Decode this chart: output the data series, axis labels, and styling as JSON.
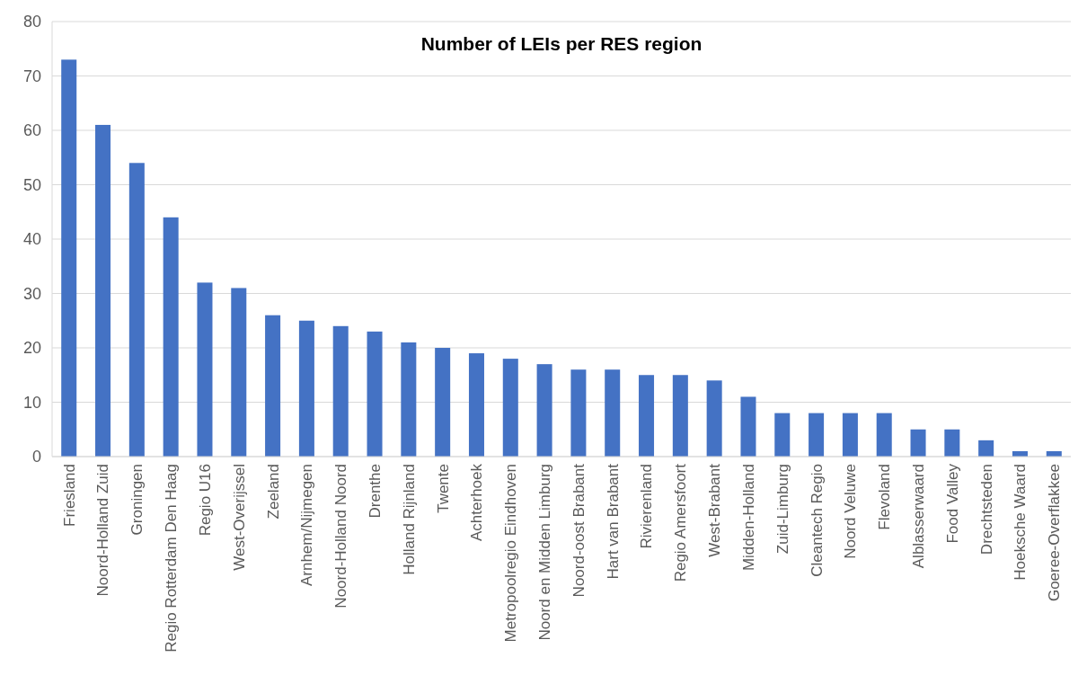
{
  "chart_data": {
    "type": "bar",
    "title": "Number of LEIs per RES region",
    "categories": [
      "Friesland",
      "Noord-Holland Zuid",
      "Groningen",
      "Regio Rotterdam Den Haag",
      "Regio U16",
      "West-Overijssel",
      "Zeeland",
      "Arnhem/Nijmegen",
      "Noord-Holland Noord",
      "Drenthe",
      "Holland Rijnland",
      "Twente",
      "Achterhoek",
      "Metropoolregio Eindhoven",
      "Noord en Midden Limburg",
      "Noord-oost Brabant",
      "Hart van Brabant",
      "Rivierenland",
      "Regio Amersfoort",
      "West-Brabant",
      "Midden-Holland",
      "Zuid-Limburg",
      "Cleantech Regio",
      "Noord Veluwe",
      "Flevoland",
      "Alblasserwaard",
      "Food Valley",
      "Drechtsteden",
      "Hoeksche Waard",
      "Goeree-Overflakkee"
    ],
    "values": [
      73,
      61,
      54,
      44,
      32,
      31,
      26,
      25,
      24,
      23,
      21,
      20,
      19,
      18,
      17,
      16,
      16,
      15,
      15,
      14,
      11,
      8,
      8,
      8,
      8,
      5,
      5,
      3,
      1,
      1
    ],
    "color": "#4472c4",
    "ylim": [
      0,
      80
    ],
    "yticks": [
      0,
      10,
      20,
      30,
      40,
      50,
      60,
      70,
      80
    ],
    "grid": "y"
  }
}
